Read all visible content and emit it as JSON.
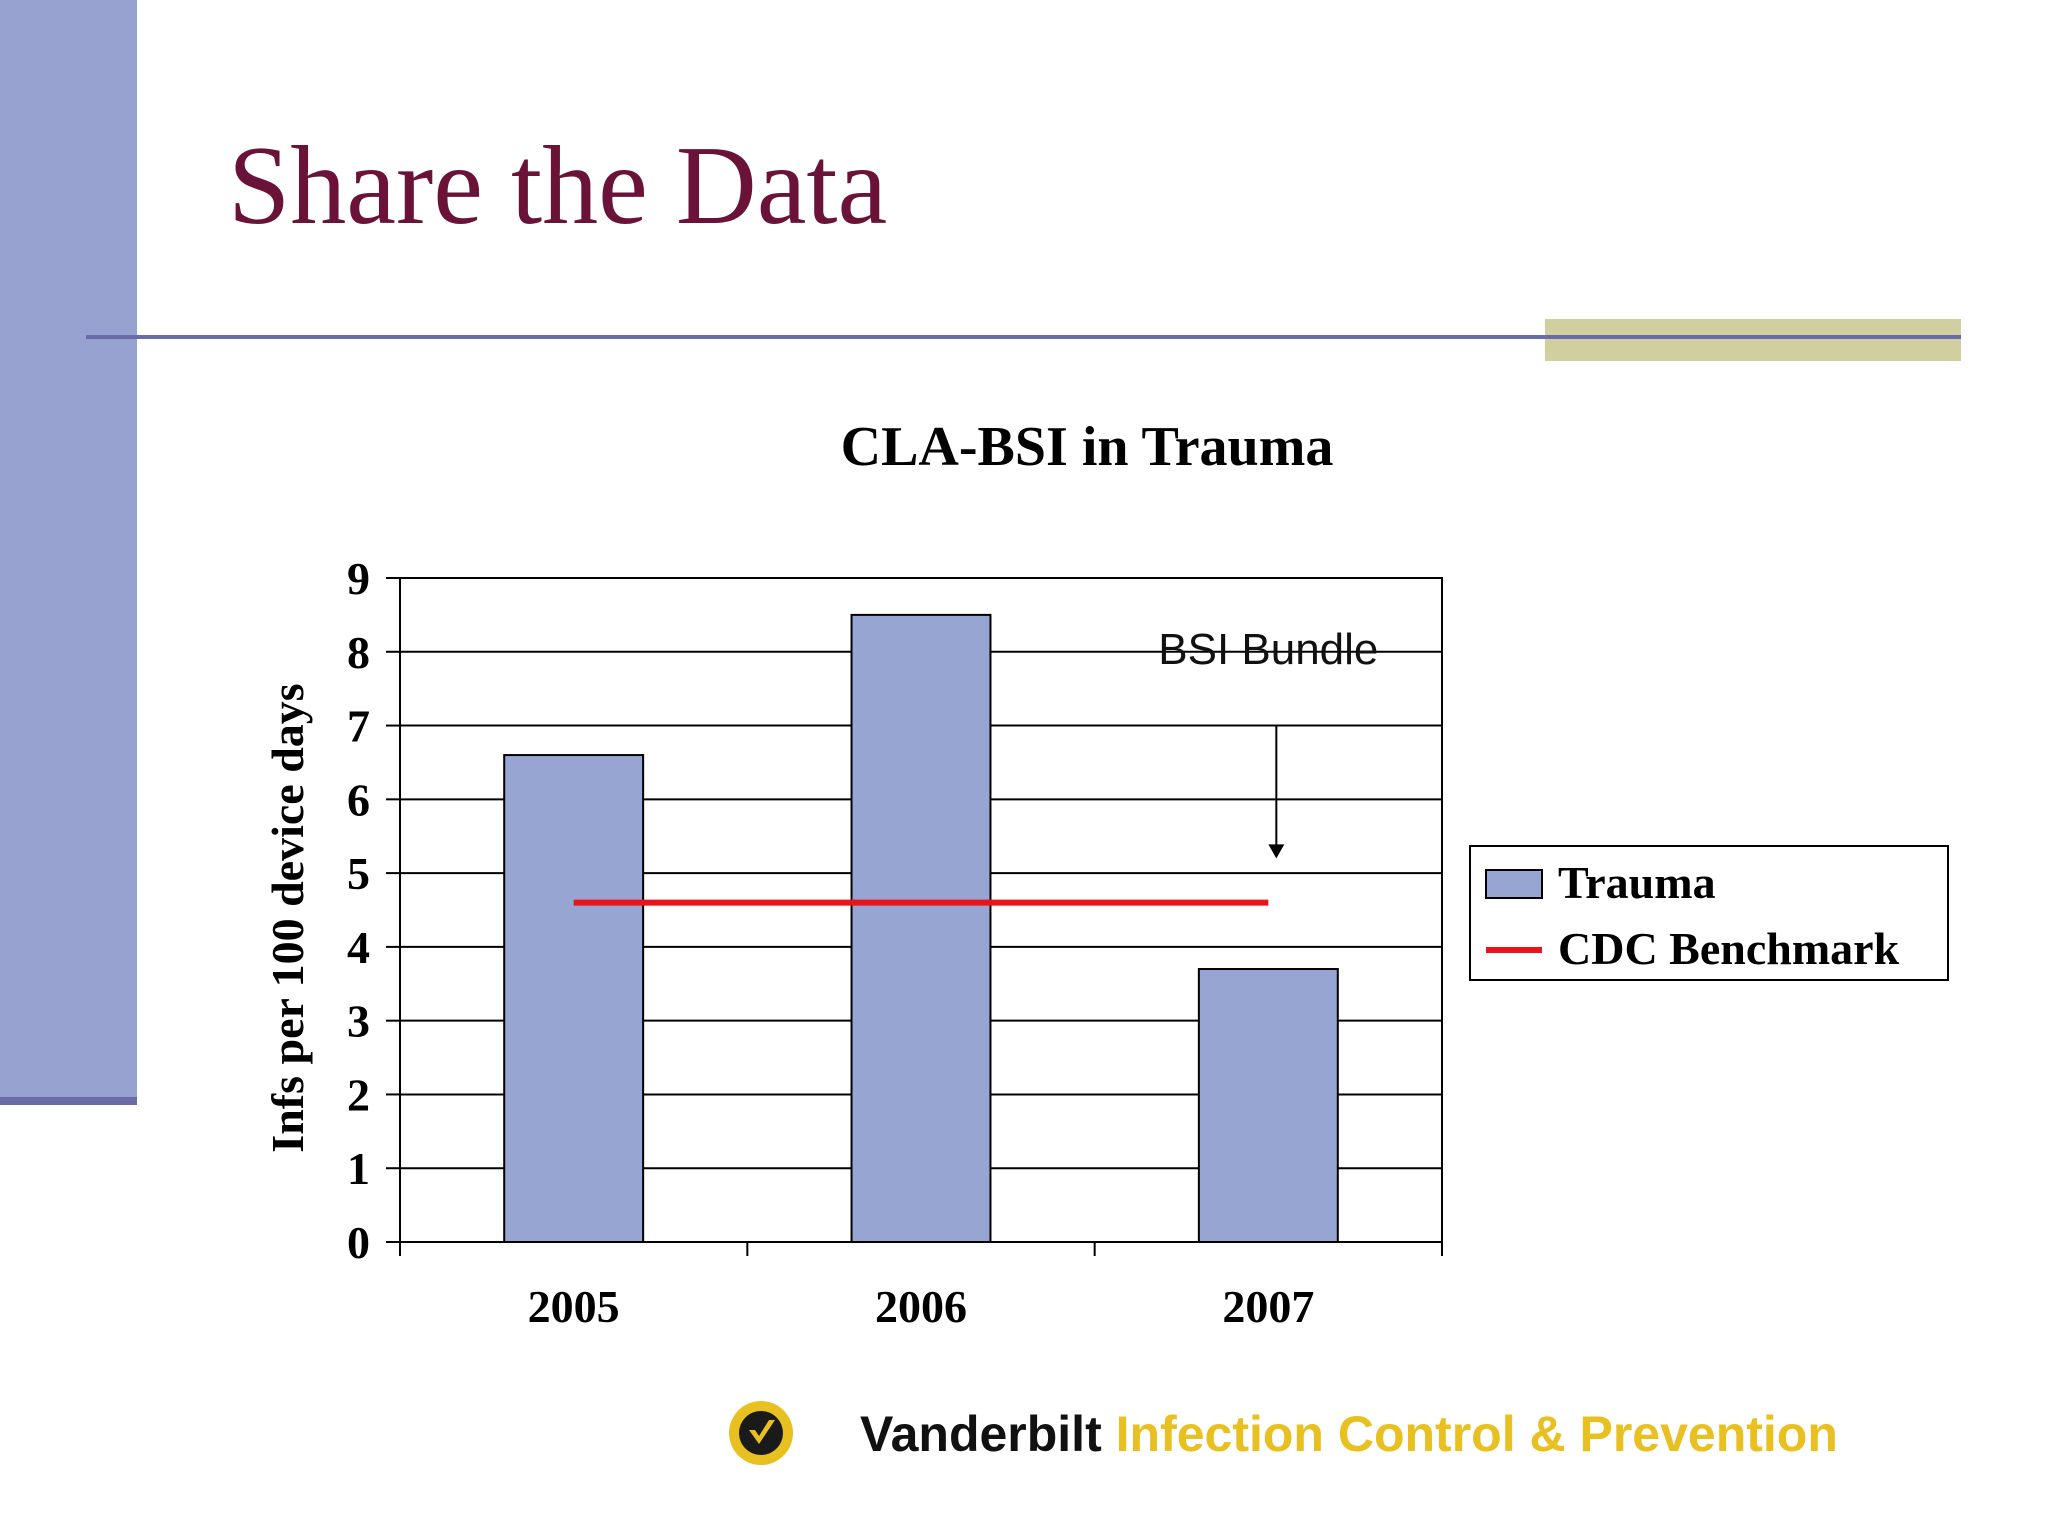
{
  "slide": {
    "title": "Share the Data",
    "footer_org": "Vanderbilt",
    "footer_dept": "Infection Control & Prevention"
  },
  "colors": {
    "side_bar": "#98a2d0",
    "title": "#6b1239",
    "rule": "#6a6ca8",
    "rule_accent": "#cfcf9f",
    "footer_accent": "#e8c020"
  },
  "chart_data": {
    "type": "bar",
    "title": "CLA-BSI in Trauma",
    "xlabel": "",
    "ylabel": "Infs per 100 device days",
    "ylim": [
      0,
      9
    ],
    "yticks": [
      "0",
      "1",
      "2",
      "3",
      "4",
      "5",
      "6",
      "7",
      "8",
      "9"
    ],
    "categories": [
      "2005",
      "2006",
      "2007"
    ],
    "series": [
      {
        "name": "Trauma",
        "type": "bar",
        "color": "#97a5d3",
        "values": [
          6.6,
          8.5,
          3.7
        ]
      },
      {
        "name": "CDC Benchmark",
        "type": "line",
        "color": "#e8141c",
        "value": 4.6,
        "x_start": "2005",
        "x_end": "2007"
      }
    ],
    "annotation": {
      "text": "BSI Bundle",
      "points_to": "2007",
      "arrow_from": 7,
      "arrow_to": 5.2
    },
    "grid": true,
    "legend_position": "right"
  }
}
